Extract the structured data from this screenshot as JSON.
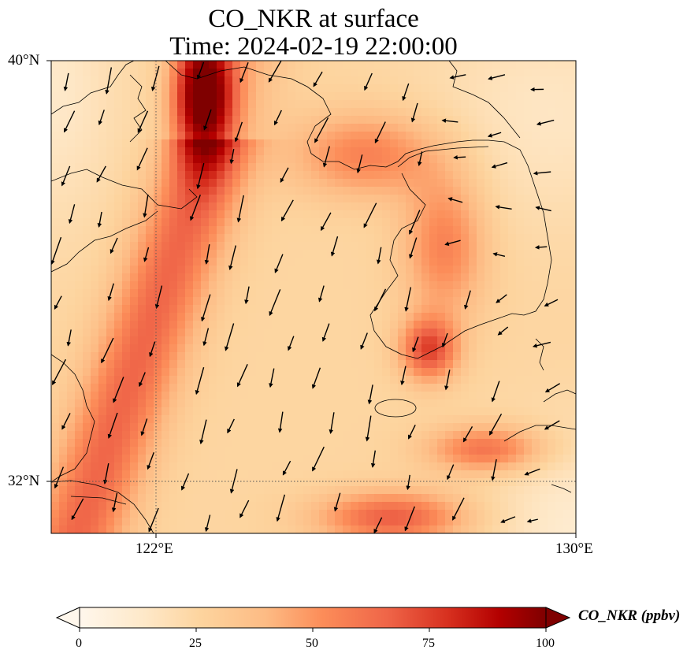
{
  "title": {
    "line1": "CO_NKR at surface",
    "line2": "Time: 2024-02-19 22:00:00"
  },
  "axes": {
    "lat_labels": [
      "40°N",
      "32°N"
    ],
    "lon_labels": [
      "122°E",
      "130°E"
    ],
    "lon_range_deg": [
      120,
      130
    ],
    "lat_range_deg": [
      31,
      40
    ],
    "gridlines": "dotted, at 122°E and 32°N"
  },
  "colorbar": {
    "label": "CO_NKR (ppbv)",
    "ticks": [
      "0",
      "25",
      "50",
      "75",
      "100"
    ],
    "range": [
      0,
      100
    ],
    "extend": "both",
    "colormap": [
      "#fff7ec",
      "#fee8c8",
      "#fdd49e",
      "#fdbb84",
      "#fc8d59",
      "#ef6548",
      "#d7301f",
      "#b30000",
      "#7f0000"
    ]
  },
  "chart_data": {
    "type": "heatmap",
    "variable": "CO_NKR",
    "units": "ppbv",
    "level": "surface",
    "time": "2024-02-19 22:00:00",
    "region_lon": [
      120,
      130
    ],
    "region_lat": [
      31,
      40
    ],
    "value_range": [
      0,
      100
    ],
    "features": "CO plume above 90 ppbv near 122.5-123.5°E, 38.5-40°N; elevated band 40-60 ppbv along the coasts of China and Korea; 20-30 ppbv over the Yellow Sea; local maxima around 127°E 34.5°N and 128.5°E 32.5°N",
    "wind_vectors": "mostly pointing south-southwest"
  }
}
